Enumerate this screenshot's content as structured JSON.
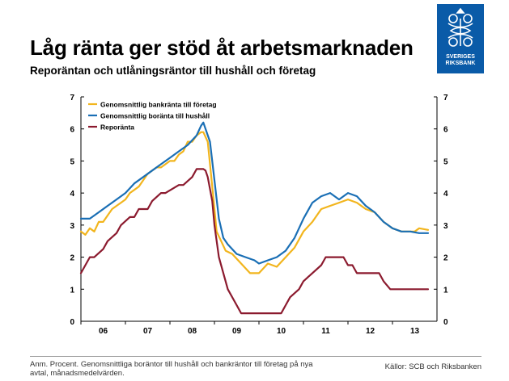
{
  "title": "Låg ränta ger stöd åt arbetsmarknaden",
  "subtitle": "Reporäntan och utlåningsräntor till hushåll och företag",
  "logo": {
    "line1": "SVERIGES",
    "line2": "RIKSBANK",
    "color": "#0a5ba8"
  },
  "footnote": "Anm. Procent. Genomsnittliga boräntor till hushåll och bankräntor till företag på nya avtal, månadsmedelvärden.",
  "source": "Källor: SCB och Riksbanken",
  "chart_data": {
    "type": "line",
    "title": "",
    "xlabel": "",
    "ylabel": "",
    "x_ticks": [
      "06",
      "07",
      "08",
      "09",
      "10",
      "11",
      "12",
      "13"
    ],
    "y_ticks": [
      "0",
      "1",
      "2",
      "3",
      "4",
      "5",
      "6",
      "7"
    ],
    "ylim": [
      0,
      7
    ],
    "xlim": [
      2006.0,
      2014.0
    ],
    "grid": "none",
    "legend_position": "top-left",
    "series": [
      {
        "name": "Genomsnittlig bankränta till företag",
        "color": "#f2b51d",
        "x": [
          2006.0,
          2006.1,
          2006.2,
          2006.3,
          2006.4,
          2006.5,
          2006.6,
          2006.7,
          2006.8,
          2006.9,
          2007.0,
          2007.1,
          2007.2,
          2007.3,
          2007.4,
          2007.5,
          2007.6,
          2007.7,
          2007.8,
          2007.9,
          2008.0,
          2008.1,
          2008.2,
          2008.3,
          2008.4,
          2008.5,
          2008.6,
          2008.7,
          2008.75,
          2008.85,
          2008.95,
          2009.05,
          2009.15,
          2009.25,
          2009.4,
          2009.6,
          2009.8,
          2010.0,
          2010.2,
          2010.4,
          2010.6,
          2010.8,
          2011.0,
          2011.2,
          2011.4,
          2011.6,
          2011.8,
          2012.0,
          2012.2,
          2012.4,
          2012.6,
          2012.8,
          2013.0,
          2013.2,
          2013.4,
          2013.5,
          2013.6,
          2013.8
        ],
        "y": [
          2.8,
          2.7,
          2.9,
          2.8,
          3.1,
          3.1,
          3.3,
          3.5,
          3.6,
          3.7,
          3.8,
          4.0,
          4.1,
          4.2,
          4.4,
          4.6,
          4.7,
          4.8,
          4.8,
          4.9,
          5.0,
          5.0,
          5.2,
          5.3,
          5.6,
          5.6,
          5.8,
          5.9,
          5.9,
          5.6,
          4.2,
          2.8,
          2.5,
          2.2,
          2.1,
          1.8,
          1.5,
          1.5,
          1.8,
          1.7,
          2.0,
          2.3,
          2.8,
          3.1,
          3.5,
          3.6,
          3.7,
          3.8,
          3.7,
          3.5,
          3.4,
          3.1,
          2.9,
          2.8,
          2.8,
          2.8,
          2.9,
          2.85
        ]
      },
      {
        "name": "Genomsnittlig boränta till hushåll",
        "color": "#1a6fb5",
        "x": [
          2006.0,
          2006.2,
          2006.4,
          2006.6,
          2006.8,
          2007.0,
          2007.2,
          2007.4,
          2007.6,
          2007.8,
          2008.0,
          2008.2,
          2008.4,
          2008.6,
          2008.7,
          2008.75,
          2008.8,
          2008.9,
          2009.0,
          2009.1,
          2009.2,
          2009.3,
          2009.5,
          2009.7,
          2009.9,
          2010.0,
          2010.2,
          2010.4,
          2010.6,
          2010.8,
          2011.0,
          2011.2,
          2011.4,
          2011.6,
          2011.8,
          2012.0,
          2012.2,
          2012.4,
          2012.6,
          2012.8,
          2013.0,
          2013.2,
          2013.4,
          2013.6,
          2013.8
        ],
        "y": [
          3.2,
          3.2,
          3.4,
          3.6,
          3.8,
          4.0,
          4.3,
          4.5,
          4.7,
          4.9,
          5.1,
          5.3,
          5.5,
          5.8,
          6.1,
          6.2,
          6.0,
          5.6,
          4.4,
          3.2,
          2.6,
          2.4,
          2.1,
          2.0,
          1.9,
          1.8,
          1.9,
          2.0,
          2.2,
          2.6,
          3.2,
          3.7,
          3.9,
          4.0,
          3.8,
          4.0,
          3.9,
          3.6,
          3.4,
          3.1,
          2.9,
          2.8,
          2.8,
          2.75,
          2.75
        ]
      },
      {
        "name": "Reporänta",
        "color": "#8b1a2e",
        "x": [
          2006.0,
          2006.1,
          2006.2,
          2006.3,
          2006.5,
          2006.6,
          2006.8,
          2006.9,
          2007.1,
          2007.2,
          2007.3,
          2007.5,
          2007.6,
          2007.8,
          2007.9,
          2008.2,
          2008.3,
          2008.5,
          2008.6,
          2008.75,
          2008.8,
          2008.85,
          2008.95,
          2009.0,
          2009.1,
          2009.3,
          2009.5,
          2009.6,
          2010.0,
          2010.3,
          2010.5,
          2010.6,
          2010.7,
          2010.9,
          2011.0,
          2011.2,
          2011.4,
          2011.5,
          2011.6,
          2011.9,
          2012.0,
          2012.1,
          2012.2,
          2012.7,
          2012.8,
          2012.95,
          2013.8
        ],
        "y": [
          1.5,
          1.75,
          2.0,
          2.0,
          2.25,
          2.5,
          2.75,
          3.0,
          3.25,
          3.25,
          3.5,
          3.5,
          3.75,
          4.0,
          4.0,
          4.25,
          4.25,
          4.5,
          4.75,
          4.75,
          4.7,
          4.5,
          3.75,
          3.0,
          2.0,
          1.0,
          0.5,
          0.25,
          0.25,
          0.25,
          0.25,
          0.5,
          0.75,
          1.0,
          1.25,
          1.5,
          1.75,
          2.0,
          2.0,
          2.0,
          1.75,
          1.75,
          1.5,
          1.5,
          1.25,
          1.0,
          1.0
        ]
      }
    ]
  }
}
